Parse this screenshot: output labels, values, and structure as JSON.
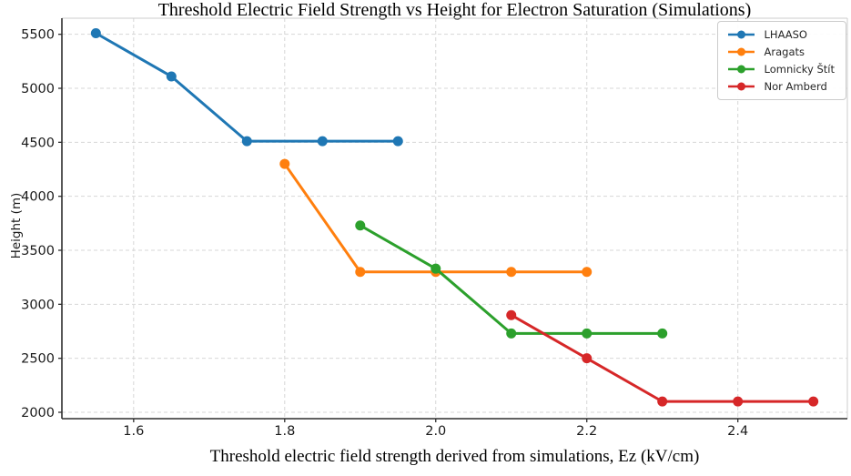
{
  "chart_data": {
    "type": "line",
    "title": "Threshold Electric Field Strength vs Height for Electron Saturation (Simulations)",
    "xlabel": "Threshold electric field strength derived from simulations, Ez (kV/cm)",
    "ylabel": "Height (m)",
    "xlim": [
      1.505,
      2.545
    ],
    "ylim": [
      1941,
      5649
    ],
    "x_ticks": [
      1.6,
      1.8,
      2.0,
      2.2,
      2.4
    ],
    "y_ticks": [
      2000,
      2500,
      3000,
      3500,
      4000,
      4500,
      5000,
      5500
    ],
    "grid": true,
    "marker": "circle",
    "marker_size": 11,
    "line_width": 3,
    "legend_position": "upper right",
    "series": [
      {
        "name": "LHAASO",
        "color": "#1f77b4",
        "x": [
          1.55,
          1.65,
          1.75,
          1.85,
          1.95
        ],
        "y": [
          5510,
          5110,
          4510,
          4510,
          4510
        ]
      },
      {
        "name": "Aragats",
        "color": "#ff7f0e",
        "x": [
          1.8,
          1.9,
          2.0,
          2.1,
          2.2
        ],
        "y": [
          4300,
          3300,
          3300,
          3300,
          3300
        ]
      },
      {
        "name": "Lomnicky Štít",
        "color": "#2ca02c",
        "x": [
          1.9,
          2.0,
          2.1,
          2.2,
          2.3
        ],
        "y": [
          3730,
          3330,
          2730,
          2730,
          2730
        ]
      },
      {
        "name": "Nor Amberd",
        "color": "#d62728",
        "x": [
          2.1,
          2.2,
          2.3,
          2.4,
          2.5
        ],
        "y": [
          2900,
          2500,
          2100,
          2100,
          2100
        ]
      }
    ]
  },
  "colors": {
    "grid": "#d7d7d7",
    "spine_dark": "#2e2e2e",
    "spine_light": "#cccccc",
    "tick_label": "#1a1a1a",
    "legend_border": "#cccccc",
    "background": "#ffffff"
  }
}
